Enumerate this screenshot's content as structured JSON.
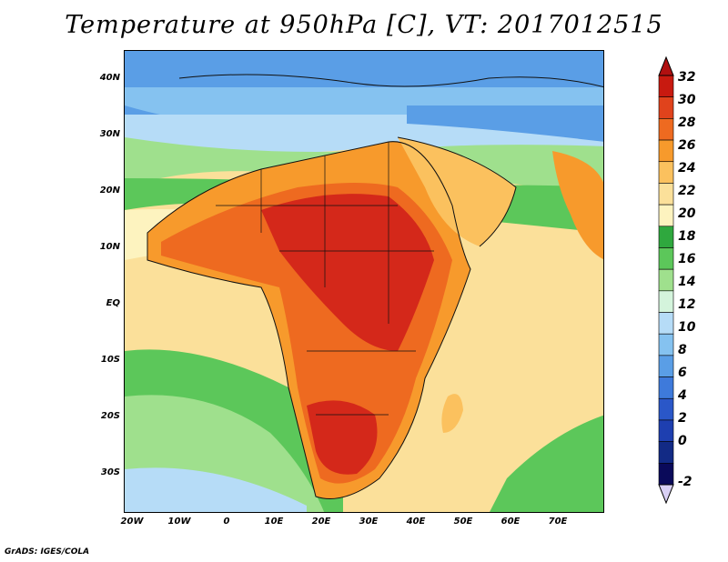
{
  "title": "Temperature at 950hPa [C], VT: 2017012515",
  "footer": "GrADS: IGES/COLA",
  "lat_labels": [
    "40N",
    "30N",
    "20N",
    "10N",
    "EQ",
    "10S",
    "20S",
    "30S"
  ],
  "lon_labels": [
    "20W",
    "10W",
    "0",
    "10E",
    "20E",
    "30E",
    "40E",
    "50E",
    "60E",
    "70E"
  ],
  "colorbar": {
    "labels": [
      "32",
      "30",
      "28",
      "26",
      "24",
      "22",
      "20",
      "18",
      "16",
      "14",
      "12",
      "10",
      "8",
      "6",
      "4",
      "2",
      "0",
      "-2"
    ],
    "colors": [
      "#c81a10",
      "#e0431c",
      "#ee6a20",
      "#f79a2c",
      "#fbc15e",
      "#fbe09a",
      "#fdf3bf",
      "#2fa83e",
      "#5cc75a",
      "#9fe08d",
      "#d4f4dc",
      "#b6dcf7",
      "#85c2f0",
      "#5a9ee6",
      "#3e7adb",
      "#2a57c8",
      "#1e3fb0",
      "#122a85",
      "#0a0a5a"
    ],
    "top_arrow_color": "#b01010",
    "bottom_arrow_color": "#d9d0f5"
  },
  "map_colors": {
    "ocean_warm": "#fbe09a",
    "ocean_mild": "#fdf3bf",
    "ocean_green": "#5cc75a",
    "ocean_light_green": "#9fe08d",
    "ocean_cool": "#b6dcf7",
    "land_hot": "#d4281a",
    "land_warm": "#ee6a20",
    "land_mid": "#f79a2c",
    "north_cool": "#85c2f0",
    "north_cold": "#3e7adb",
    "north_coldest": "#1e3fb0"
  }
}
